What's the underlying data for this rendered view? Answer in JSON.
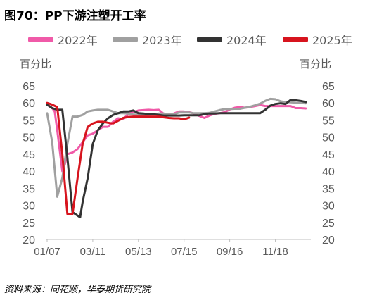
{
  "title": "图70：PP下游注塑开工率",
  "source": "资料来源：同花顺，华泰期货研究院",
  "chart_data": {
    "type": "line",
    "ylabel_left": "百分比",
    "ylabel_right": "百分比",
    "ylim": [
      20,
      65
    ],
    "yticks": [
      20,
      25,
      30,
      35,
      40,
      45,
      50,
      55,
      60,
      65
    ],
    "xlim": [
      0,
      52
    ],
    "xtick_labels": [
      {
        "x": 0,
        "label": "01/07"
      },
      {
        "x": 9,
        "label": "03/11"
      },
      {
        "x": 18,
        "label": "05/13"
      },
      {
        "x": 27,
        "label": "07/15"
      },
      {
        "x": 36,
        "label": "09/16"
      },
      {
        "x": 45,
        "label": "11/18"
      }
    ],
    "grid": false,
    "legend_position": "top",
    "series": [
      {
        "name": "2022年",
        "color": "#f05aa8",
        "x": [
          0,
          0.5,
          1,
          1.5,
          2,
          2.5,
          3,
          3.5,
          4,
          5,
          6,
          7,
          8,
          9,
          10,
          11,
          12,
          13,
          14,
          15,
          16,
          17,
          18,
          19,
          20,
          21,
          22,
          23,
          24,
          25,
          26,
          27,
          28,
          29,
          30,
          31,
          32,
          33,
          34,
          35,
          36,
          37,
          38,
          39,
          40,
          41,
          42,
          43,
          44,
          45,
          46,
          47,
          48,
          49,
          50,
          51
        ],
        "y": [
          59.5,
          59,
          58.5,
          57.5,
          52,
          46,
          40,
          42,
          45,
          45.5,
          46.5,
          48.5,
          50.5,
          51,
          52,
          53,
          53,
          54.5,
          55.5,
          55.2,
          56.8,
          57.3,
          57.8,
          57.9,
          58,
          57.9,
          58,
          56.8,
          56.7,
          56.9,
          57.5,
          57.5,
          57.3,
          56.9,
          56.2,
          55.6,
          56.3,
          56.8,
          57,
          57.3,
          58.1,
          58.6,
          58.8,
          58.6,
          58.8,
          59.1,
          59.4,
          59.1,
          59.1,
          59.1,
          59.1,
          59.1,
          59.1,
          58.5,
          58.5,
          58.4
        ]
      },
      {
        "x": [
          0,
          1,
          2,
          3,
          4,
          5,
          6,
          7,
          8,
          9,
          10,
          11,
          12,
          13,
          14,
          15,
          16,
          17,
          18,
          19,
          20,
          21,
          22,
          23,
          24,
          25,
          26,
          27,
          28,
          29,
          30,
          31,
          32,
          33,
          34,
          35,
          36,
          37,
          38,
          39,
          40,
          41,
          42,
          43,
          44,
          45,
          46,
          47,
          48,
          49,
          50,
          51
        ],
        "name": "2023年",
        "color": "#a0a0a0",
        "y": [
          57,
          48.5,
          32.5,
          38,
          48,
          56,
          56,
          56.5,
          57.5,
          57.8,
          58,
          58,
          58,
          57.5,
          57,
          57,
          56.9,
          56.6,
          56.6,
          56.6,
          56.6,
          56.7,
          56.9,
          56.9,
          56.6,
          56.7,
          57.2,
          57.2,
          57.2,
          57,
          57,
          57,
          57.1,
          57.5,
          57.9,
          58.2,
          58.2,
          58.3,
          58.3,
          58.6,
          58.9,
          59.3,
          59.8,
          60.6,
          61.2,
          61.1,
          60.5,
          60.3,
          60.2,
          60.1,
          60,
          59.9
        ]
      },
      {
        "name": "2024年",
        "color": "#333333",
        "x": [
          0,
          1,
          2,
          3,
          4,
          5,
          6,
          6.5,
          7,
          8,
          9,
          10,
          11,
          12,
          13,
          14,
          15,
          16,
          17,
          18,
          19,
          20,
          21,
          22,
          23,
          24,
          25,
          26,
          27,
          28,
          29,
          30,
          31,
          32,
          33,
          34,
          35,
          36,
          37,
          38,
          39,
          40,
          41,
          42,
          43,
          44,
          45,
          46,
          47,
          48,
          49,
          50,
          51
        ],
        "y": [
          59.5,
          58.5,
          58,
          58,
          44,
          28,
          27,
          26.5,
          31,
          38,
          48,
          52,
          54,
          55.5,
          56.5,
          57,
          57.5,
          57.5,
          57.8,
          57,
          56.9,
          56.7,
          56.7,
          56.5,
          56.3,
          56.3,
          56.3,
          56.3,
          56.4,
          56.4,
          56.4,
          56.4,
          56.7,
          56.9,
          56.9,
          57,
          57,
          57,
          57,
          57,
          57,
          57,
          57,
          57,
          58,
          59.2,
          59.7,
          59.9,
          59.7,
          60.9,
          60.8,
          60.6,
          60.3
        ]
      },
      {
        "name": "2025年",
        "color": "#d7141e",
        "x": [
          0,
          1,
          2,
          3,
          4,
          5,
          6,
          7,
          8,
          9,
          10,
          11,
          12,
          13,
          14,
          15,
          16,
          17,
          18,
          19,
          20,
          21,
          22,
          23,
          24,
          25,
          26,
          27,
          28
        ],
        "y": [
          60,
          59.5,
          58.8,
          45,
          27.5,
          27.5,
          38,
          48,
          53,
          54,
          54.5,
          54.5,
          54.2,
          54,
          54.8,
          55.6,
          55.9,
          56,
          56,
          56,
          56,
          56,
          56,
          55.8,
          55.6,
          55.5,
          55.5,
          55.2,
          55.7
        ]
      }
    ]
  }
}
